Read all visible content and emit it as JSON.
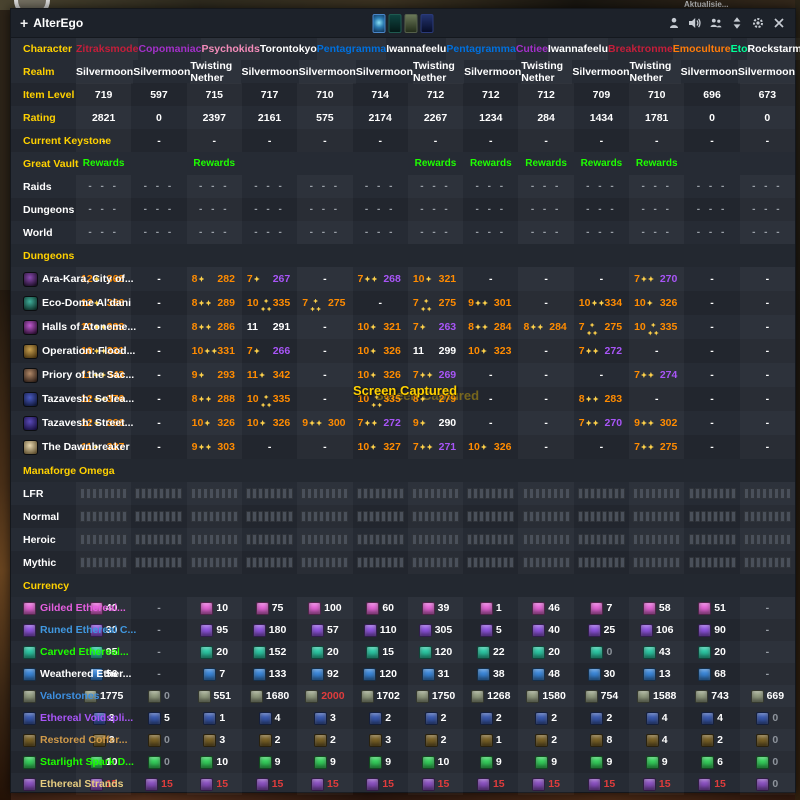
{
  "title_bar": {
    "plus_icon": "+",
    "title": "AlterEgo",
    "top_right_text": "Aktualisie...",
    "action_icons": [
      "characters-icon",
      "announce-icon",
      "group-icon",
      "sort-icon",
      "settings-icon",
      "close-icon"
    ],
    "portrait_icons": [
      {
        "name": "portrait-icon-1",
        "border": "#4a86c8",
        "bg": "radial-gradient(circle at 50% 45%, #8ae0f4 0%, #2a7ab0 45%, #0d2c50 100%)"
      },
      {
        "name": "portrait-icon-2",
        "border": "#1f5a50",
        "bg": "linear-gradient(180deg,#0f4440,#041a18)"
      },
      {
        "name": "portrait-icon-3",
        "border": "#55604a",
        "bg": "linear-gradient(180deg,#6a7858,#242e1a)"
      },
      {
        "name": "portrait-icon-4",
        "border": "#2a3a7a",
        "bg": "linear-gradient(180deg,#23336e,#070d28)"
      }
    ]
  },
  "toast": "Screen Captured",
  "labels": {
    "character": "Character",
    "realm": "Realm",
    "item_level": "Item Level",
    "rating": "Rating",
    "current_keystone": "Current Keystone",
    "great_vault": "Great Vault",
    "vault_rows": [
      "Raids",
      "Dungeons",
      "World"
    ],
    "rewards": "Rewards",
    "dash": "-",
    "triple_dash": "- - -",
    "sections": {
      "dungeons": "Dungeons",
      "raid": "Manaforge Omega",
      "currency": "Currency"
    },
    "raid_difficulties": [
      "LFR",
      "Normal",
      "Heroic",
      "Mythic"
    ]
  },
  "characters": [
    {
      "name": "Zitraksmode",
      "color": "#C41E3A",
      "realm": "Silvermoon",
      "ilvl": "719",
      "ilvl_color": "purple",
      "rating": "2821",
      "rating_color": "orange",
      "vault_rewards": true
    },
    {
      "name": "Copomaniac",
      "color": "#A330C9",
      "realm": "Silvermoon",
      "ilvl": "597",
      "ilvl_color": "white",
      "rating": "0",
      "rating_color": "white",
      "vault_rewards": false
    },
    {
      "name": "Psychokids",
      "color": "#F48CBA",
      "realm": "Twisting Nether",
      "ilvl": "715",
      "ilvl_color": "purple",
      "rating": "2397",
      "rating_color": "orange",
      "vault_rewards": true
    },
    {
      "name": "Torontokyo",
      "color": "#FFFFFF",
      "realm": "Silvermoon",
      "ilvl": "717",
      "ilvl_color": "purple",
      "rating": "2161",
      "rating_color": "purple",
      "vault_rewards": false
    },
    {
      "name": "Pentagramma",
      "color": "#0070DD",
      "realm": "Silvermoon",
      "ilvl": "710",
      "ilvl_color": "purple",
      "rating": "575",
      "rating_color": "white",
      "vault_rewards": false
    },
    {
      "name": "Iwannafeelu",
      "color": "#FFFFFF",
      "realm": "Silvermoon",
      "ilvl": "714",
      "ilvl_color": "purple",
      "rating": "2174",
      "rating_color": "purple",
      "vault_rewards": false
    },
    {
      "name": "Pentagramma",
      "color": "#0070DD",
      "realm": "Twisting Nether",
      "ilvl": "712",
      "ilvl_color": "purple",
      "rating": "2267",
      "rating_color": "orange",
      "vault_rewards": true
    },
    {
      "name": "Cutiee",
      "color": "#A330C9",
      "realm": "Silvermoon",
      "ilvl": "712",
      "ilvl_color": "purple",
      "rating": "1234",
      "rating_color": "green",
      "vault_rewards": true
    },
    {
      "name": "Iwannafeelu",
      "color": "#FFFFFF",
      "realm": "Twisting Nether",
      "ilvl": "712",
      "ilvl_color": "purple",
      "rating": "284",
      "rating_color": "white",
      "vault_rewards": true
    },
    {
      "name": "Breaktronme",
      "color": "#C41E3A",
      "realm": "Silvermoon",
      "ilvl": "709",
      "ilvl_color": "purple",
      "rating": "1434",
      "rating_color": "green",
      "vault_rewards": true
    },
    {
      "name": "Emoculture",
      "color": "#FF7C0A",
      "realm": "Twisting Nether",
      "ilvl": "710",
      "ilvl_color": "purple",
      "rating": "1781",
      "rating_color": "blue",
      "vault_rewards": true
    },
    {
      "name": "Eto",
      "color": "#00FF98",
      "realm": "Silvermoon",
      "ilvl": "696",
      "ilvl_color": "purple",
      "rating": "0",
      "rating_color": "white",
      "vault_rewards": false
    },
    {
      "name": "Rockstarmade",
      "color": "#FFFFFF",
      "realm": "Silvermoon",
      "ilvl": "673",
      "ilvl_color": "purple",
      "rating": "0",
      "rating_color": "white",
      "vault_rewards": false
    }
  ],
  "dungeons": [
    {
      "name": "Ara-Kara, City of...",
      "icon_colors": [
        "#8a4ab0",
        "#1c0f26"
      ],
      "cells": [
        [
          12,
          1,
          "368",
          "orange"
        ],
        null,
        [
          8,
          1,
          "282",
          "orange"
        ],
        [
          7,
          1,
          "267",
          "purple"
        ],
        null,
        [
          7,
          2,
          "268",
          "purple"
        ],
        [
          10,
          1,
          "321",
          "orange"
        ],
        null,
        null,
        null,
        [
          7,
          2,
          "270",
          "purple"
        ],
        null,
        null
      ]
    },
    {
      "name": "Eco-Dome Al'dani",
      "icon_colors": [
        "#3fae9a",
        "#0e2f28"
      ],
      "cells": [
        [
          12,
          1,
          "366",
          "orange"
        ],
        null,
        [
          8,
          2,
          "289",
          "orange"
        ],
        [
          10,
          3,
          "335",
          "orange"
        ],
        [
          7,
          3,
          "275",
          "orange"
        ],
        null,
        [
          7,
          3,
          "275",
          "orange"
        ],
        [
          9,
          2,
          "301",
          "orange"
        ],
        null,
        [
          10,
          2,
          "334",
          "orange"
        ],
        [
          10,
          1,
          "326",
          "orange"
        ],
        null,
        null
      ]
    },
    {
      "name": "Halls of Atoneme...",
      "icon_colors": [
        "#c05ad0",
        "#2a0e30"
      ],
      "cells": [
        [
          10,
          2,
          "333",
          "orange"
        ],
        null,
        [
          8,
          2,
          "286",
          "orange"
        ],
        [
          11,
          0,
          "291",
          "white"
        ],
        null,
        [
          10,
          1,
          "321",
          "orange"
        ],
        [
          7,
          1,
          "263",
          "purple"
        ],
        [
          8,
          2,
          "284",
          "orange"
        ],
        [
          8,
          2,
          "284",
          "orange"
        ],
        [
          7,
          3,
          "275",
          "orange"
        ],
        [
          10,
          3,
          "335",
          "orange"
        ],
        null,
        null
      ]
    },
    {
      "name": "Operation: Flood...",
      "icon_colors": [
        "#c8a050",
        "#4a3410"
      ],
      "cells": [
        [
          10,
          2,
          "331",
          "orange"
        ],
        null,
        [
          10,
          2,
          "331",
          "orange"
        ],
        [
          7,
          1,
          "266",
          "purple"
        ],
        null,
        [
          10,
          1,
          "326",
          "orange"
        ],
        [
          11,
          0,
          "299",
          "white"
        ],
        [
          10,
          1,
          "323",
          "orange"
        ],
        null,
        [
          7,
          2,
          "272",
          "purple"
        ],
        null,
        null,
        null
      ]
    },
    {
      "name": "Priory of the Sac...",
      "icon_colors": [
        "#b08868",
        "#302018"
      ],
      "cells": [
        [
          11,
          2,
          "343",
          "orange"
        ],
        null,
        [
          9,
          1,
          "293",
          "orange"
        ],
        [
          11,
          1,
          "342",
          "orange"
        ],
        null,
        [
          10,
          1,
          "326",
          "orange"
        ],
        [
          7,
          2,
          "269",
          "purple"
        ],
        null,
        null,
        null,
        [
          7,
          2,
          "274",
          "purple"
        ],
        null,
        null
      ]
    },
    {
      "name": "Tazavesh: So'lea...",
      "icon_colors": [
        "#4a5ac0",
        "#101838"
      ],
      "cells": [
        [
          12,
          2,
          "376",
          "orange"
        ],
        null,
        [
          8,
          2,
          "288",
          "orange"
        ],
        [
          10,
          3,
          "335",
          "orange"
        ],
        null,
        [
          10,
          3,
          "335",
          "orange"
        ],
        [
          8,
          1,
          "279",
          "orange"
        ],
        null,
        null,
        [
          8,
          2,
          "283",
          "orange"
        ],
        null,
        null,
        null
      ]
    },
    {
      "name": "Tazavesh: Street...",
      "icon_colors": [
        "#5a4ab8",
        "#181040"
      ],
      "cells": [
        [
          12,
          1,
          "366",
          "orange"
        ],
        null,
        [
          10,
          1,
          "326",
          "orange"
        ],
        [
          10,
          1,
          "326",
          "orange"
        ],
        [
          9,
          2,
          "300",
          "orange"
        ],
        [
          7,
          2,
          "272",
          "purple"
        ],
        [
          9,
          1,
          "290",
          "white"
        ],
        null,
        null,
        [
          7,
          2,
          "270",
          "purple"
        ],
        [
          9,
          2,
          "302",
          "orange"
        ],
        null,
        null
      ]
    },
    {
      "name": "The Dawnbreaker",
      "icon_colors": [
        "#e8d8b0",
        "#605030"
      ],
      "cells": [
        [
          11,
          1,
          "337",
          "orange"
        ],
        null,
        [
          9,
          2,
          "303",
          "orange"
        ],
        null,
        null,
        [
          10,
          1,
          "327",
          "orange"
        ],
        [
          7,
          2,
          "271",
          "purple"
        ],
        [
          10,
          1,
          "326",
          "orange"
        ],
        null,
        null,
        [
          7,
          2,
          "275",
          "orange"
        ],
        null,
        null
      ]
    }
  ],
  "raid": {
    "bosses_per_column": 8
  },
  "currencies": [
    {
      "name": "Gilded Ethereal...",
      "name_color": "#e55fe0",
      "icon_color": "#e667d8",
      "values": [
        "40",
        "-",
        "10",
        "75",
        "100",
        "60",
        "39",
        "1",
        "46",
        "7",
        "58",
        "51",
        "-"
      ],
      "value_colors": [
        "white",
        "gray",
        "white",
        "white",
        "white",
        "white",
        "white",
        "white",
        "white",
        "white",
        "white",
        "white",
        "gray"
      ]
    },
    {
      "name": "Runed Ethereal C...",
      "name_color": "#4098e0",
      "icon_color": "#9055e0",
      "values": [
        "30",
        "-",
        "95",
        "180",
        "57",
        "110",
        "305",
        "5",
        "40",
        "25",
        "106",
        "90",
        "-"
      ],
      "value_colors": [
        "white",
        "gray",
        "white",
        "white",
        "white",
        "white",
        "white",
        "white",
        "white",
        "white",
        "white",
        "white",
        "gray"
      ]
    },
    {
      "name": "Carved Ethereal...",
      "name_color": "#1eff00",
      "icon_color": "#2cc8a4",
      "values": [
        "95",
        "-",
        "20",
        "152",
        "20",
        "15",
        "120",
        "22",
        "20",
        "0",
        "43",
        "20",
        "-"
      ],
      "value_colors": [
        "white",
        "gray",
        "white",
        "white",
        "white",
        "white",
        "white",
        "white",
        "white",
        "gray",
        "white",
        "white",
        "gray"
      ]
    },
    {
      "name": "Weathered Ether...",
      "name_color": "#ffffff",
      "icon_color": "#3a86d8",
      "values": [
        "56",
        "-",
        "7",
        "133",
        "92",
        "120",
        "31",
        "38",
        "48",
        "30",
        "13",
        "68",
        "-"
      ],
      "value_colors": [
        "white",
        "gray",
        "white",
        "white",
        "white",
        "white",
        "white",
        "white",
        "white",
        "white",
        "white",
        "white",
        "gray"
      ]
    },
    {
      "name": "Valorstones",
      "name_color": "#3d8fe0",
      "icon_color": "#96a084",
      "values": [
        "1775",
        "0",
        "551",
        "1680",
        "2000",
        "1702",
        "1750",
        "1268",
        "1580",
        "754",
        "1588",
        "743",
        "669"
      ],
      "value_colors": [
        "white",
        "gray",
        "white",
        "white",
        "red",
        "white",
        "white",
        "white",
        "white",
        "white",
        "white",
        "white",
        "white"
      ]
    },
    {
      "name": "Ethereal Voidspli...",
      "name_color": "#a855f7",
      "icon_color": "#3b5bb0",
      "values": [
        "3",
        "5",
        "1",
        "4",
        "3",
        "2",
        "2",
        "2",
        "2",
        "2",
        "4",
        "4",
        "0"
      ],
      "value_colors": [
        "white",
        "white",
        "white",
        "white",
        "white",
        "white",
        "white",
        "white",
        "white",
        "white",
        "white",
        "white",
        "gray"
      ]
    },
    {
      "name": "Restored Coffer...",
      "name_color": "#d09a4a",
      "icon_color": "#7a6228",
      "values": [
        "3",
        "0",
        "3",
        "2",
        "2",
        "3",
        "2",
        "1",
        "2",
        "8",
        "4",
        "2",
        "0"
      ],
      "value_colors": [
        "white",
        "gray",
        "white",
        "white",
        "white",
        "white",
        "white",
        "white",
        "white",
        "white",
        "white",
        "white",
        "gray"
      ]
    },
    {
      "name": "Starlight Spark D...",
      "name_color": "#1eff00",
      "icon_color": "#35d05c",
      "values": [
        "10",
        "0",
        "10",
        "9",
        "9",
        "9",
        "10",
        "9",
        "9",
        "9",
        "9",
        "6",
        "0"
      ],
      "value_colors": [
        "white",
        "gray",
        "white",
        "white",
        "white",
        "white",
        "white",
        "white",
        "white",
        "white",
        "white",
        "white",
        "gray"
      ]
    },
    {
      "name": "Ethereal Strands",
      "name_color": "#e6cc80",
      "icon_color": "#8a50c0",
      "values": [
        "15",
        "15",
        "15",
        "15",
        "15",
        "15",
        "15",
        "15",
        "15",
        "15",
        "15",
        "15",
        "0"
      ],
      "value_colors": [
        "red",
        "red",
        "red",
        "red",
        "red",
        "red",
        "red",
        "red",
        "red",
        "red",
        "red",
        "red",
        "gray"
      ]
    }
  ],
  "palette": {
    "orange": "#ff8b00",
    "purple": "#a855f7",
    "white": "#ffffff",
    "green": "#1eff00",
    "blue": "#2f9bff",
    "gray": "#8e949c",
    "red": "#e03c3c",
    "gold": "#ffd100"
  }
}
